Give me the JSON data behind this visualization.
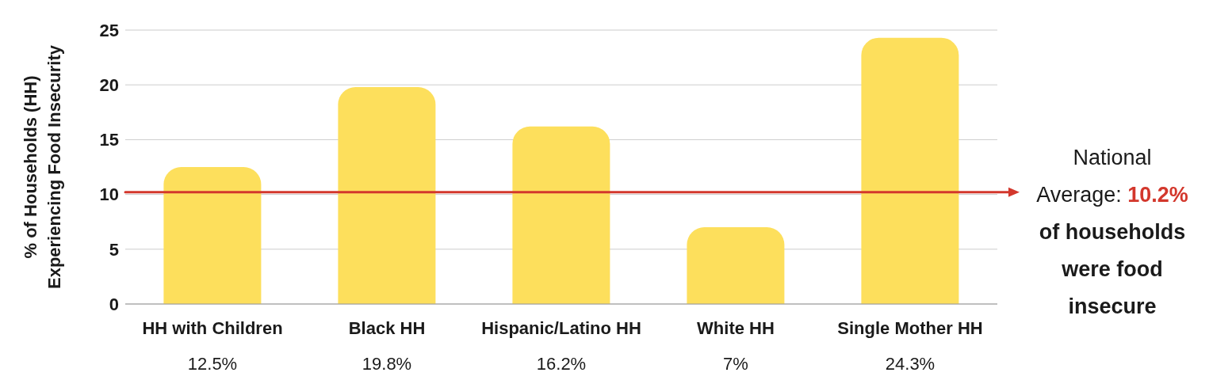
{
  "chart_data": {
    "type": "bar",
    "ylabel": "% of Households (HH)\nExperiencing Food Insecurity",
    "categories": [
      "HH with Children",
      "Black HH",
      "Hispanic/Latino HH",
      "White HH",
      "Single Mother HH"
    ],
    "values": [
      12.5,
      19.8,
      16.2,
      7,
      24.3
    ],
    "value_labels": [
      "12.5%",
      "19.8%",
      "16.2%",
      "7%",
      "24.3%"
    ],
    "color": "#fddf5c",
    "ylim": [
      0,
      25
    ],
    "yticks": [
      0,
      5,
      10,
      15,
      20,
      25
    ],
    "grid": "y",
    "ref_lines": [
      {
        "axis": "y",
        "value": 10.2,
        "label": "National Average: 10.2% of households were food insecure",
        "color": "#d3372c"
      }
    ]
  }
}
